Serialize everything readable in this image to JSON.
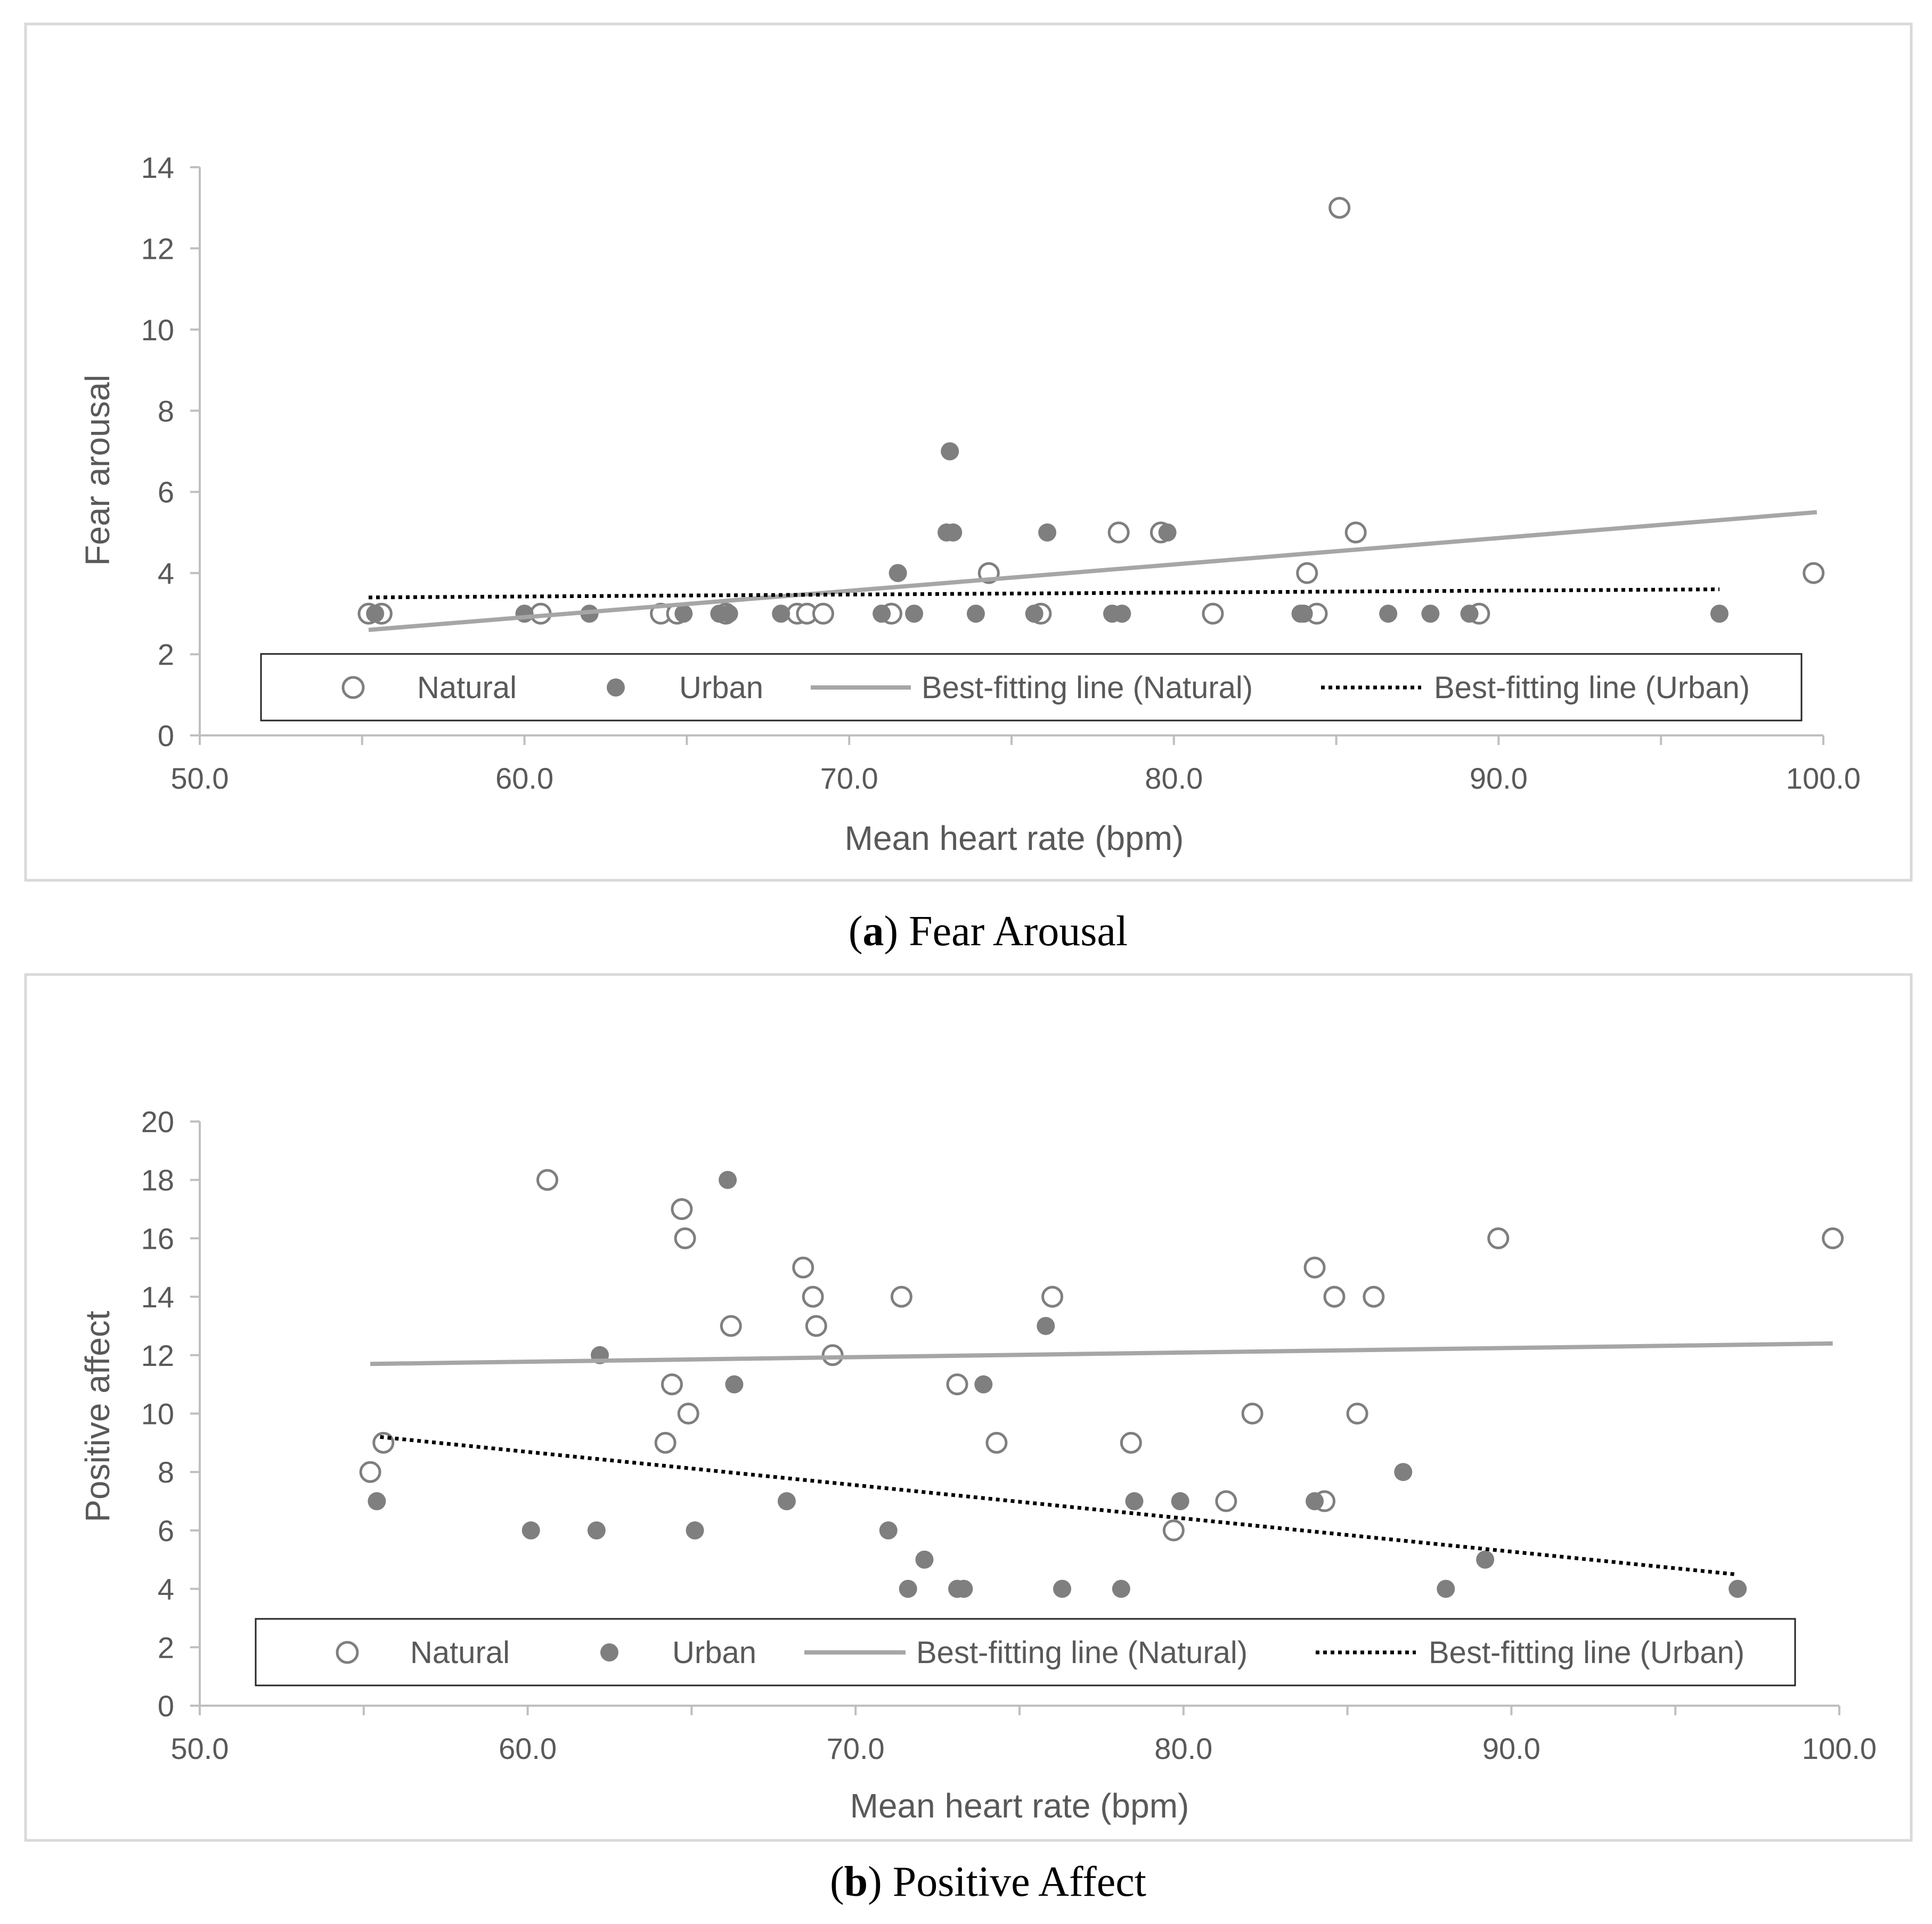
{
  "colors": {
    "axis": "#bfbfbf",
    "frame": "#d9d9d9",
    "text": "#595959",
    "marker": "#7f7f7f",
    "natural_line": "#a6a6a6",
    "urban_line": "#000000"
  },
  "chart_data": [
    {
      "type": "scatter",
      "caption": {
        "letter": "a",
        "text": "Fear Arousal"
      },
      "xlabel": "Mean heart rate (bpm)",
      "ylabel": "Fear arousal",
      "xlim": [
        50,
        100
      ],
      "ylim": [
        0,
        14
      ],
      "xticks": [
        "50.0",
        "60.0",
        "70.0",
        "80.0",
        "90.0",
        "100.0"
      ],
      "yticks": [
        "0",
        "2",
        "4",
        "6",
        "8",
        "10",
        "12",
        "14"
      ],
      "legend": {
        "natural": "Natural",
        "urban": "Urban",
        "natural_fit": "Best-fitting line (Natural)",
        "urban_fit": "Best-fitting line (Urban)"
      },
      "series": [
        {
          "name": "Natural",
          "marker": "open-circle",
          "points": [
            [
              55.2,
              3
            ],
            [
              55.6,
              3
            ],
            [
              60.5,
              3
            ],
            [
              64.2,
              3
            ],
            [
              64.7,
              3
            ],
            [
              66.2,
              3
            ],
            [
              68.4,
              3
            ],
            [
              68.7,
              3
            ],
            [
              69.2,
              3
            ],
            [
              71.3,
              3
            ],
            [
              74.3,
              4
            ],
            [
              75.9,
              3
            ],
            [
              78.3,
              5
            ],
            [
              79.6,
              5
            ],
            [
              81.2,
              3
            ],
            [
              84.1,
              4
            ],
            [
              84.4,
              3
            ],
            [
              85.1,
              13
            ],
            [
              85.6,
              5
            ],
            [
              89.4,
              3
            ],
            [
              99.7,
              4
            ]
          ]
        },
        {
          "name": "Urban",
          "marker": "filled-circle",
          "points": [
            [
              55.4,
              3
            ],
            [
              60.0,
              3
            ],
            [
              62.0,
              3
            ],
            [
              64.9,
              3
            ],
            [
              66.0,
              3
            ],
            [
              66.3,
              3
            ],
            [
              67.9,
              3
            ],
            [
              71.0,
              3
            ],
            [
              71.5,
              4
            ],
            [
              72.0,
              3
            ],
            [
              73.0,
              5
            ],
            [
              73.2,
              5
            ],
            [
              73.1,
              7
            ],
            [
              73.9,
              3
            ],
            [
              75.7,
              3
            ],
            [
              76.1,
              5
            ],
            [
              78.1,
              3
            ],
            [
              78.4,
              3
            ],
            [
              79.8,
              5
            ],
            [
              83.9,
              3
            ],
            [
              84.0,
              3
            ],
            [
              86.6,
              3
            ],
            [
              87.9,
              3
            ],
            [
              89.1,
              3
            ],
            [
              96.8,
              3
            ]
          ]
        },
        {
          "name": "Best-fitting line (Natural)",
          "style": "solid",
          "points": [
            [
              55.2,
              2.6
            ],
            [
              99.8,
              5.5
            ]
          ]
        },
        {
          "name": "Best-fitting line (Urban)",
          "style": "dotted",
          "points": [
            [
              55.2,
              3.4
            ],
            [
              96.8,
              3.6
            ]
          ]
        }
      ]
    },
    {
      "type": "scatter",
      "caption": {
        "letter": "b",
        "text": "Positive Affect"
      },
      "xlabel": "Mean heart rate (bpm)",
      "ylabel": "Positive affect",
      "xlim": [
        50,
        100
      ],
      "ylim": [
        0,
        20
      ],
      "xticks": [
        "50.0",
        "60.0",
        "70.0",
        "80.0",
        "90.0",
        "100.0"
      ],
      "yticks": [
        "0",
        "2",
        "4",
        "6",
        "8",
        "10",
        "12",
        "14",
        "16",
        "18",
        "20"
      ],
      "legend": {
        "natural": "Natural",
        "urban": "Urban",
        "natural_fit": "Best-fitting line (Natural)",
        "urban_fit": "Best-fitting line (Urban)"
      },
      "series": [
        {
          "name": "Natural",
          "marker": "open-circle",
          "points": [
            [
              55.2,
              8
            ],
            [
              55.6,
              9
            ],
            [
              60.6,
              18
            ],
            [
              64.2,
              9
            ],
            [
              64.4,
              11
            ],
            [
              64.7,
              17
            ],
            [
              64.8,
              16
            ],
            [
              64.9,
              10
            ],
            [
              66.2,
              13
            ],
            [
              68.4,
              15
            ],
            [
              68.7,
              14
            ],
            [
              68.8,
              13
            ],
            [
              69.3,
              12
            ],
            [
              71.4,
              14
            ],
            [
              73.1,
              11
            ],
            [
              74.3,
              9
            ],
            [
              76.0,
              14
            ],
            [
              78.4,
              9
            ],
            [
              79.7,
              6
            ],
            [
              81.3,
              7
            ],
            [
              82.1,
              10
            ],
            [
              84.0,
              15
            ],
            [
              84.3,
              7
            ],
            [
              84.6,
              14
            ],
            [
              85.3,
              10
            ],
            [
              85.8,
              14
            ],
            [
              89.6,
              16
            ],
            [
              99.8,
              16
            ]
          ]
        },
        {
          "name": "Urban",
          "marker": "filled-circle",
          "points": [
            [
              55.4,
              7
            ],
            [
              60.1,
              6
            ],
            [
              62.1,
              6
            ],
            [
              62.2,
              12
            ],
            [
              65.1,
              6
            ],
            [
              66.1,
              18
            ],
            [
              66.3,
              11
            ],
            [
              67.9,
              7
            ],
            [
              71.0,
              6
            ],
            [
              71.6,
              4
            ],
            [
              72.1,
              5
            ],
            [
              73.1,
              4
            ],
            [
              73.3,
              4
            ],
            [
              73.9,
              11
            ],
            [
              75.8,
              13
            ],
            [
              76.3,
              4
            ],
            [
              78.1,
              4
            ],
            [
              78.5,
              7
            ],
            [
              79.9,
              7
            ],
            [
              84.0,
              7
            ],
            [
              86.7,
              8
            ],
            [
              88.0,
              4
            ],
            [
              89.2,
              5
            ],
            [
              96.9,
              4
            ]
          ]
        },
        {
          "name": "Best-fitting line (Natural)",
          "style": "solid",
          "points": [
            [
              55.2,
              11.7
            ],
            [
              99.8,
              12.4
            ]
          ]
        },
        {
          "name": "Best-fitting line (Urban)",
          "style": "dotted",
          "points": [
            [
              55.5,
              9.2
            ],
            [
              96.8,
              4.5
            ]
          ]
        }
      ]
    }
  ]
}
